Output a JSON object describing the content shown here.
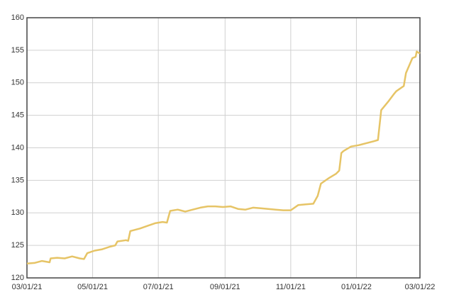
{
  "chart_data": {
    "type": "line",
    "x": [
      "03/01/21",
      "03/08/21",
      "03/15/21",
      "03/22/21",
      "03/23/21",
      "03/29/21",
      "04/05/21",
      "04/12/21",
      "04/19/21",
      "04/23/21",
      "04/26/21",
      "05/03/21",
      "05/10/21",
      "05/17/21",
      "05/22/21",
      "05/24/21",
      "06/01/21",
      "06/03/21",
      "06/05/21",
      "06/14/21",
      "06/21/21",
      "06/28/21",
      "07/05/21",
      "07/09/21",
      "07/12/21",
      "07/19/21",
      "07/26/21",
      "08/02/21",
      "08/09/21",
      "08/16/21",
      "08/23/21",
      "08/30/21",
      "09/06/21",
      "09/13/21",
      "09/20/21",
      "09/27/21",
      "10/04/21",
      "10/11/21",
      "10/18/21",
      "10/25/21",
      "11/01/21",
      "11/08/21",
      "11/15/21",
      "11/22/21",
      "11/26/21",
      "11/29/21",
      "12/06/21",
      "12/13/21",
      "12/16/21",
      "12/18/21",
      "12/20/21",
      "12/27/21",
      "01/03/22",
      "01/10/22",
      "01/17/22",
      "01/21/22",
      "01/24/22",
      "01/31/22",
      "02/05/22",
      "02/07/22",
      "02/14/22",
      "02/16/22",
      "02/22/22",
      "02/25/22",
      "02/26/22",
      "03/01/22"
    ],
    "series": [
      {
        "color": "#e6c466",
        "values": [
          122.2,
          122.3,
          122.6,
          122.4,
          123.0,
          123.1,
          123.0,
          123.3,
          123.0,
          122.9,
          123.8,
          124.2,
          124.4,
          124.8,
          125.0,
          125.6,
          125.8,
          125.7,
          127.2,
          127.6,
          128.0,
          128.4,
          128.6,
          128.5,
          130.3,
          130.5,
          130.2,
          130.5,
          130.8,
          131.0,
          131.0,
          130.9,
          131.0,
          130.6,
          130.5,
          130.8,
          130.7,
          130.6,
          130.5,
          130.4,
          130.4,
          131.2,
          131.3,
          131.4,
          132.6,
          134.5,
          135.3,
          136.0,
          136.5,
          139.2,
          139.5,
          140.2,
          140.4,
          140.7,
          141.0,
          141.2,
          145.8,
          147.2,
          148.3,
          148.7,
          149.5,
          151.5,
          153.8,
          154.0,
          154.8,
          154.5
        ]
      }
    ],
    "xlim": [
      "03/01/21",
      "03/01/22"
    ],
    "xticks": [
      "03/01/21",
      "05/01/21",
      "07/01/21",
      "09/01/21",
      "11/01/21",
      "01/01/22",
      "03/01/22"
    ],
    "ylim": [
      120,
      160
    ],
    "yticks": [
      120,
      125,
      130,
      135,
      140,
      145,
      150,
      155,
      160
    ],
    "grid": true
  }
}
